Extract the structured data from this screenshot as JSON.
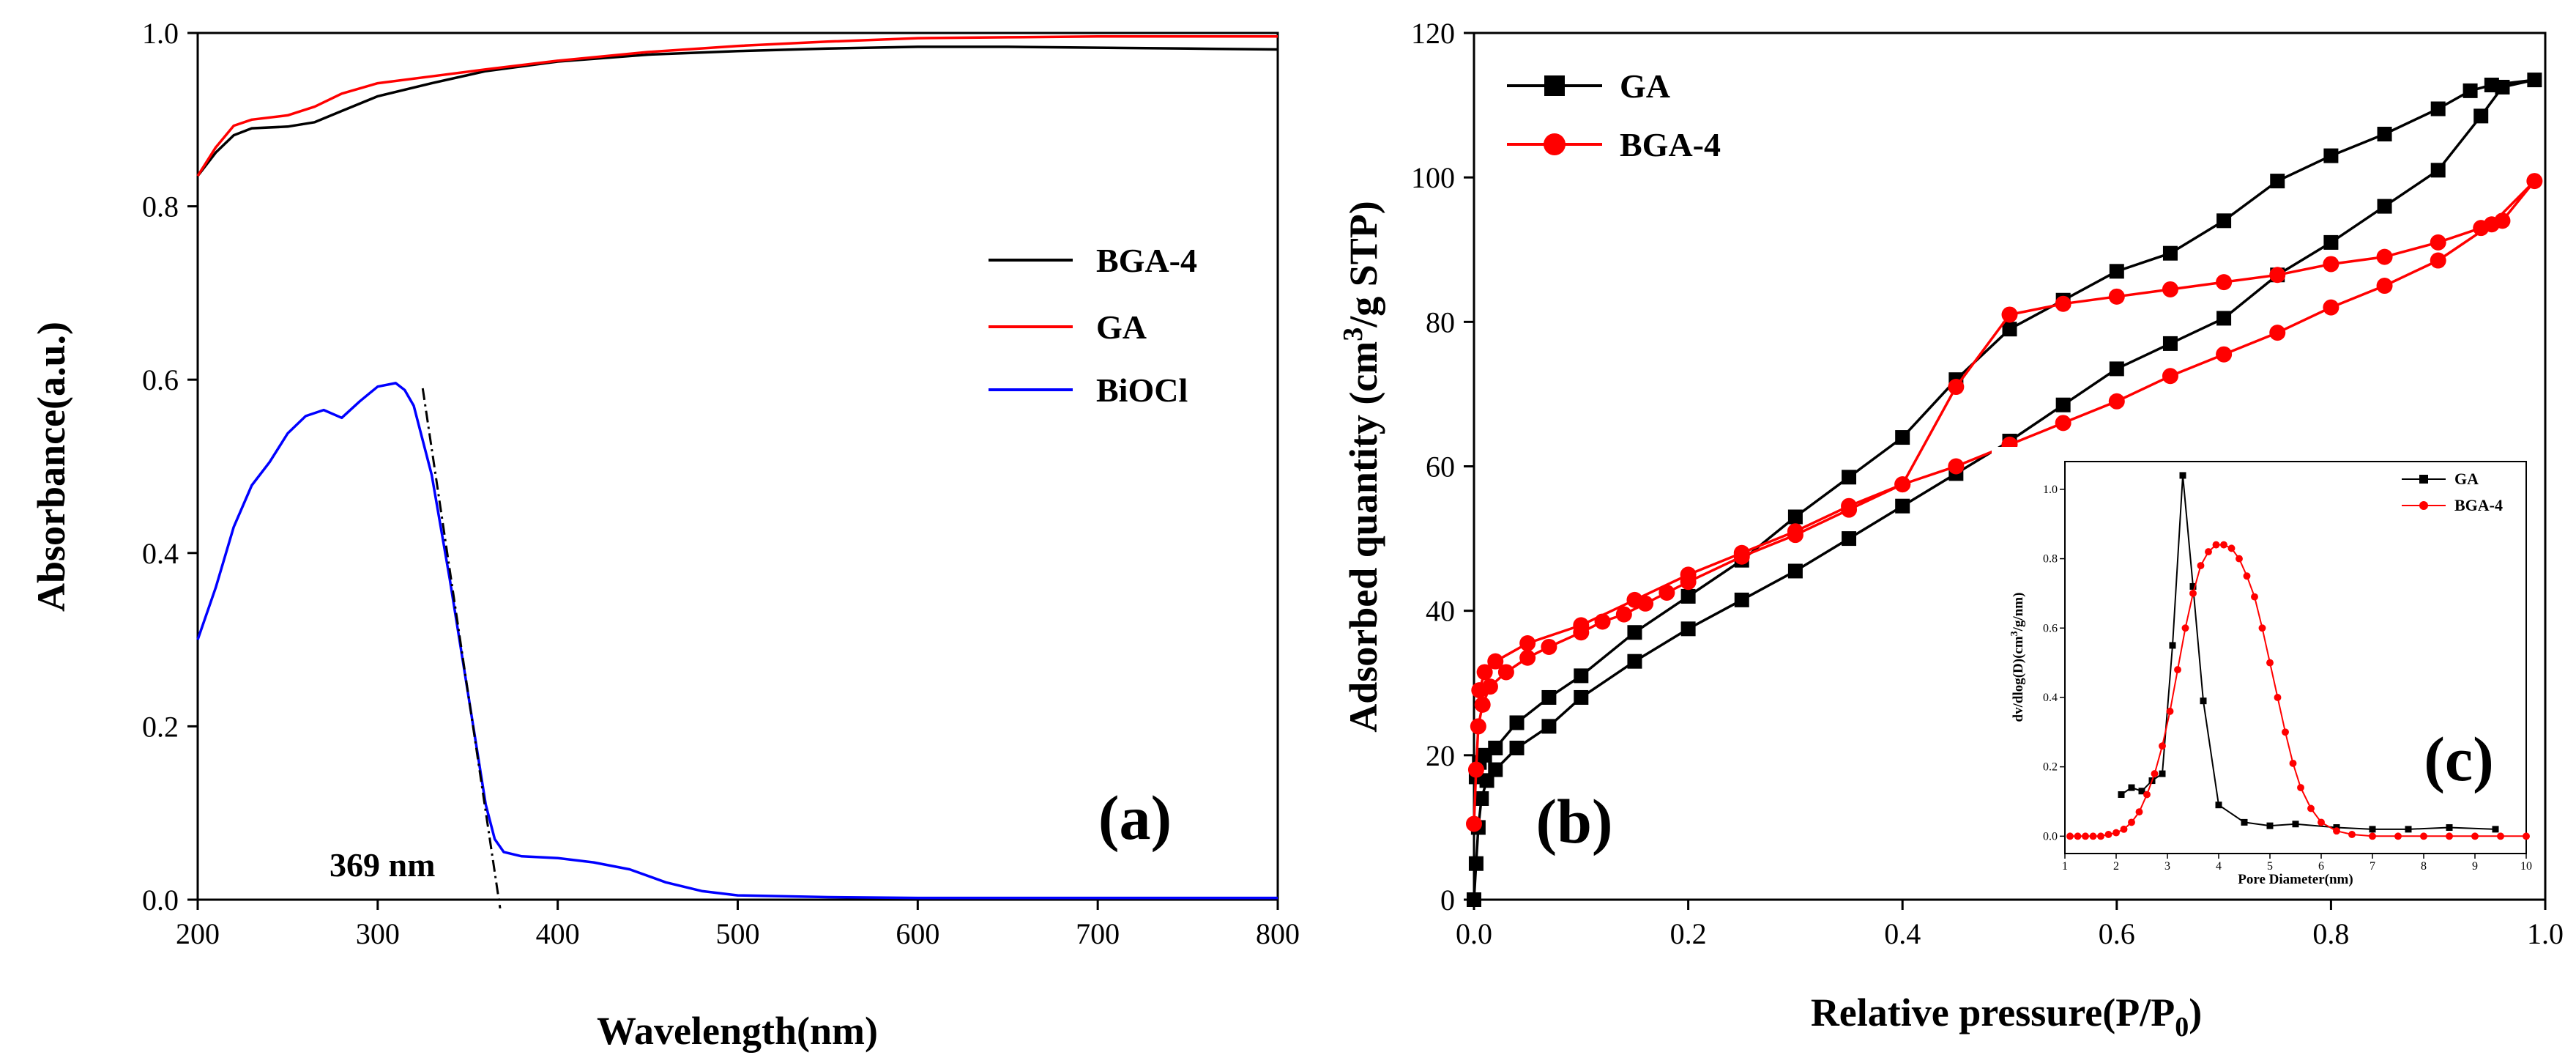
{
  "chart_data": [
    {
      "id": "a",
      "type": "line",
      "panel_label": "(a)",
      "xlabel": "Wavelength(nm)",
      "ylabel": "Absorbance(a.u.)",
      "xlim": [
        200,
        800
      ],
      "ylim": [
        0,
        1.0
      ],
      "xticks": [
        "200",
        "300",
        "400",
        "500",
        "600",
        "700",
        "800"
      ],
      "yticks": [
        "0.0",
        "0.2",
        "0.4",
        "0.6",
        "0.8",
        "1.0"
      ],
      "legend_position": "right-middle",
      "annotation": {
        "text": "369 nm",
        "line": [
          [
            325,
            0.59
          ],
          [
            368,
            -0.01
          ]
        ]
      },
      "series": [
        {
          "name": "BGA-4",
          "color": "#000000",
          "x": [
            200,
            210,
            220,
            230,
            250,
            265,
            280,
            300,
            330,
            360,
            400,
            450,
            500,
            550,
            600,
            650,
            700,
            750,
            800
          ],
          "y": [
            0.835,
            0.862,
            0.882,
            0.89,
            0.892,
            0.897,
            0.91,
            0.927,
            0.942,
            0.956,
            0.967,
            0.975,
            0.979,
            0.982,
            0.984,
            0.984,
            0.983,
            0.982,
            0.981
          ]
        },
        {
          "name": "GA",
          "color": "#ff0000",
          "x": [
            200,
            210,
            220,
            230,
            250,
            265,
            280,
            300,
            330,
            360,
            400,
            450,
            500,
            550,
            600,
            650,
            700,
            750,
            800
          ],
          "y": [
            0.835,
            0.868,
            0.893,
            0.9,
            0.905,
            0.915,
            0.93,
            0.942,
            0.95,
            0.958,
            0.968,
            0.978,
            0.985,
            0.99,
            0.994,
            0.995,
            0.996,
            0.996,
            0.996
          ]
        },
        {
          "name": "BiOCl",
          "color": "#0000ff",
          "x": [
            200,
            210,
            220,
            230,
            240,
            250,
            260,
            270,
            280,
            290,
            300,
            310,
            315,
            320,
            330,
            340,
            350,
            360,
            365,
            370,
            380,
            400,
            420,
            440,
            460,
            480,
            500,
            550,
            600,
            700,
            800
          ],
          "y": [
            0.3,
            0.36,
            0.43,
            0.478,
            0.505,
            0.538,
            0.558,
            0.565,
            0.556,
            0.575,
            0.592,
            0.596,
            0.588,
            0.57,
            0.49,
            0.37,
            0.24,
            0.11,
            0.07,
            0.055,
            0.05,
            0.048,
            0.043,
            0.035,
            0.02,
            0.01,
            0.005,
            0.003,
            0.002,
            0.002,
            0.002
          ]
        }
      ]
    },
    {
      "id": "b",
      "type": "line",
      "panel_label": "(b)",
      "xlabel_main": "Relative pressure(P/P",
      "xlabel_sub": "0",
      "xlabel_end": ")",
      "ylabel_main": "Adsorbed quantity (cm",
      "ylabel_sup": "3",
      "ylabel_end": "/g STP)",
      "xlim": [
        0,
        1.0
      ],
      "ylim": [
        0,
        120
      ],
      "xticks": [
        "0.0",
        "0.2",
        "0.4",
        "0.6",
        "0.8",
        "1.0"
      ],
      "yticks": [
        "0",
        "20",
        "40",
        "60",
        "80",
        "100",
        "120"
      ],
      "legend_position": "top-left",
      "series": [
        {
          "name": "GA",
          "color": "#000000",
          "marker": "square",
          "x": [
            0.0,
            0.002,
            0.004,
            0.007,
            0.012,
            0.02,
            0.04,
            0.07,
            0.1,
            0.15,
            0.2,
            0.25,
            0.3,
            0.35,
            0.4,
            0.45,
            0.5,
            0.55,
            0.6,
            0.65,
            0.7,
            0.75,
            0.8,
            0.85,
            0.9,
            0.94,
            0.96,
            0.99,
            0.95,
            0.93,
            0.9,
            0.85,
            0.8,
            0.75,
            0.7,
            0.65,
            0.6,
            0.55,
            0.5,
            0.45,
            0.4,
            0.35,
            0.3,
            0.25,
            0.2,
            0.15,
            0.1,
            0.07,
            0.04,
            0.02,
            0.01,
            0.005,
            0.002
          ],
          "y": [
            0,
            5,
            10,
            14,
            16.5,
            18,
            21,
            24,
            28,
            33,
            37.5,
            41.5,
            45.5,
            50,
            54.5,
            59,
            63.5,
            68.5,
            73.5,
            77,
            80.5,
            86.5,
            91,
            96,
            101,
            108.5,
            112.5,
            113.5,
            112.8,
            112,
            109.5,
            106,
            103,
            99.5,
            94,
            89.5,
            87,
            83,
            79,
            72,
            64,
            58.5,
            53,
            47,
            42,
            37,
            31,
            28,
            24.5,
            21,
            20,
            19,
            17
          ]
        },
        {
          "name": "BGA-4",
          "color": "#ff0000",
          "marker": "circle",
          "x": [
            0.0,
            0.002,
            0.004,
            0.008,
            0.015,
            0.03,
            0.05,
            0.07,
            0.1,
            0.12,
            0.14,
            0.16,
            0.18,
            0.2,
            0.25,
            0.3,
            0.35,
            0.4,
            0.45,
            0.5,
            0.55,
            0.6,
            0.65,
            0.7,
            0.75,
            0.8,
            0.85,
            0.9,
            0.95,
            0.99,
            0.96,
            0.94,
            0.9,
            0.85,
            0.8,
            0.75,
            0.7,
            0.65,
            0.6,
            0.55,
            0.5,
            0.45,
            0.4,
            0.35,
            0.3,
            0.25,
            0.2,
            0.15,
            0.1,
            0.05,
            0.02,
            0.01,
            0.005
          ],
          "y": [
            10.5,
            18,
            24,
            27,
            29.5,
            31.5,
            33.5,
            35,
            37,
            38.5,
            39.5,
            41,
            42.5,
            44,
            47.5,
            50.5,
            54,
            57.5,
            60,
            63,
            66,
            69,
            72.5,
            75.5,
            78.5,
            82,
            85,
            88.5,
            93.5,
            99.5,
            94,
            93,
            91,
            89,
            88,
            86.5,
            85.5,
            84.5,
            83.5,
            82.5,
            81,
            71,
            57.5,
            54.5,
            51,
            48,
            45,
            41.5,
            38,
            35.5,
            33,
            31.5,
            29
          ]
        }
      ]
    },
    {
      "id": "c",
      "type": "line",
      "panel_label": "(c)",
      "xlabel": "Pore Diameter(nm)",
      "ylabel_main": "dv/dlog(D)(cm",
      "ylabel_sup": "3",
      "ylabel_end": "/g/nm)",
      "xlim": [
        1,
        10
      ],
      "ylim": [
        -0.05,
        1.08
      ],
      "xticks": [
        "1",
        "2",
        "3",
        "4",
        "5",
        "6",
        "7",
        "8",
        "9",
        "10"
      ],
      "yticks": [
        "0.0",
        "0.2",
        "0.4",
        "0.6",
        "0.8",
        "1.0"
      ],
      "legend_position": "top-right",
      "series": [
        {
          "name": "GA",
          "color": "#000000",
          "marker": "square",
          "x": [
            2.1,
            2.3,
            2.5,
            2.7,
            2.9,
            3.1,
            3.3,
            3.5,
            3.7,
            4.0,
            4.5,
            5.0,
            5.5,
            6.3,
            7.0,
            7.7,
            8.5,
            9.4
          ],
          "y": [
            0.12,
            0.14,
            0.13,
            0.16,
            0.18,
            0.55,
            1.04,
            0.72,
            0.39,
            0.09,
            0.04,
            0.03,
            0.035,
            0.025,
            0.02,
            0.02,
            0.025,
            0.02
          ]
        },
        {
          "name": "BGA-4",
          "color": "#ff0000",
          "marker": "circle",
          "x": [
            1.1,
            1.25,
            1.4,
            1.55,
            1.7,
            1.85,
            2.0,
            2.15,
            2.3,
            2.45,
            2.6,
            2.75,
            2.9,
            3.05,
            3.2,
            3.35,
            3.5,
            3.65,
            3.8,
            3.95,
            4.1,
            4.25,
            4.4,
            4.55,
            4.7,
            4.85,
            5.0,
            5.15,
            5.3,
            5.45,
            5.6,
            5.8,
            6.0,
            6.3,
            6.6,
            7.0,
            7.5,
            8.0,
            8.5,
            9.0,
            9.5,
            10.0
          ],
          "y": [
            0,
            0,
            0,
            0,
            0,
            0.005,
            0.01,
            0.02,
            0.04,
            0.07,
            0.12,
            0.18,
            0.26,
            0.36,
            0.48,
            0.6,
            0.7,
            0.78,
            0.82,
            0.84,
            0.84,
            0.83,
            0.8,
            0.75,
            0.69,
            0.6,
            0.5,
            0.4,
            0.3,
            0.21,
            0.14,
            0.08,
            0.04,
            0.015,
            0.005,
            0,
            0,
            0,
            0,
            0,
            0,
            0
          ]
        }
      ]
    }
  ]
}
